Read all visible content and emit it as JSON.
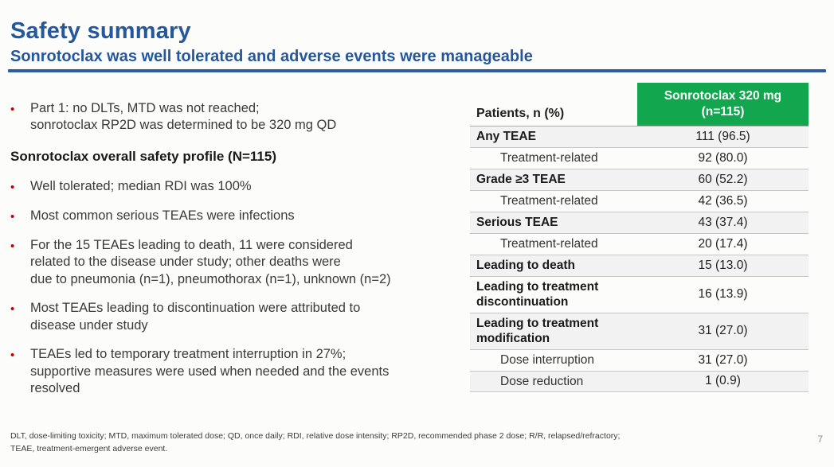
{
  "slide": {
    "title": "Safety summary",
    "subtitle": "Sonrotoclax was well tolerated and adverse events were manageable",
    "page_number": "7"
  },
  "left_content": {
    "items": [
      {
        "type": "bullet",
        "lines": [
          "Part 1: no DLTs, MTD was not reached;",
          "sonrotoclax RP2D was determined to be 320 mg QD"
        ]
      },
      {
        "type": "heading",
        "lines": [
          "Sonrotoclax overall safety profile (N=115)"
        ]
      },
      {
        "type": "bullet",
        "lines": [
          "Well tolerated; median RDI was 100%"
        ]
      },
      {
        "type": "bullet",
        "lines": [
          "Most common serious TEAEs were infections"
        ]
      },
      {
        "type": "bullet",
        "lines": [
          "For the 15 TEAEs leading to death, 11 were considered",
          "related to the disease under study; other deaths were",
          "due to pneumonia (n=1), pneumothorax (n=1), unknown (n=2)"
        ]
      },
      {
        "type": "bullet",
        "lines": [
          "Most TEAEs leading to discontinuation were attributed to",
          "disease under study"
        ]
      },
      {
        "type": "bullet",
        "lines": [
          "TEAEs led to temporary treatment interruption in 27%;",
          "supportive measures were used when needed and the events",
          "resolved"
        ]
      }
    ]
  },
  "table": {
    "header": {
      "label_column": "Patients, n (%)",
      "value_column_lines": [
        "Sonrotoclax 320 mg",
        "(n=115)"
      ]
    },
    "rows": [
      {
        "label": "Any TEAE",
        "value": "111 (96.5)",
        "style": "category"
      },
      {
        "label": "Treatment-related",
        "value": "92 (80.0)",
        "style": "sub"
      },
      {
        "label": "Grade ≥3 TEAE",
        "value": "60 (52.2)",
        "style": "category"
      },
      {
        "label": "Treatment-related",
        "value": "42 (36.5)",
        "style": "sub"
      },
      {
        "label": "Serious TEAE",
        "value": "43 (37.4)",
        "style": "category"
      },
      {
        "label": "Treatment-related",
        "value": "20 (17.4)",
        "style": "sub"
      },
      {
        "label": "Leading to death",
        "value": "15 (13.0)",
        "style": "category"
      },
      {
        "label": "Leading to treatment discontinuation",
        "value": "16 (13.9)",
        "style": "category"
      },
      {
        "label": "Leading to treatment modification",
        "value": "31 (27.0)",
        "style": "category"
      },
      {
        "label": "Dose interruption",
        "value": "31 (27.0)",
        "style": "sub"
      },
      {
        "label": "Dose reduction",
        "value": "1 (0.9)",
        "style": "sub"
      }
    ]
  },
  "footnote": {
    "lines": [
      "DLT, dose-limiting toxicity; MTD, maximum tolerated dose; QD, once daily; RDI, relative dose intensity; RP2D, recommended phase 2 dose; R/R, relapsed/refractory;",
      "TEAE, treatment-emergent adverse event."
    ]
  },
  "colors": {
    "accent_blue": "#24579B",
    "divider_blue": "#2E5C9E",
    "header_green": "#12A64F",
    "bullet_red": "#C00000",
    "row_shade": "#F2F2F2"
  }
}
